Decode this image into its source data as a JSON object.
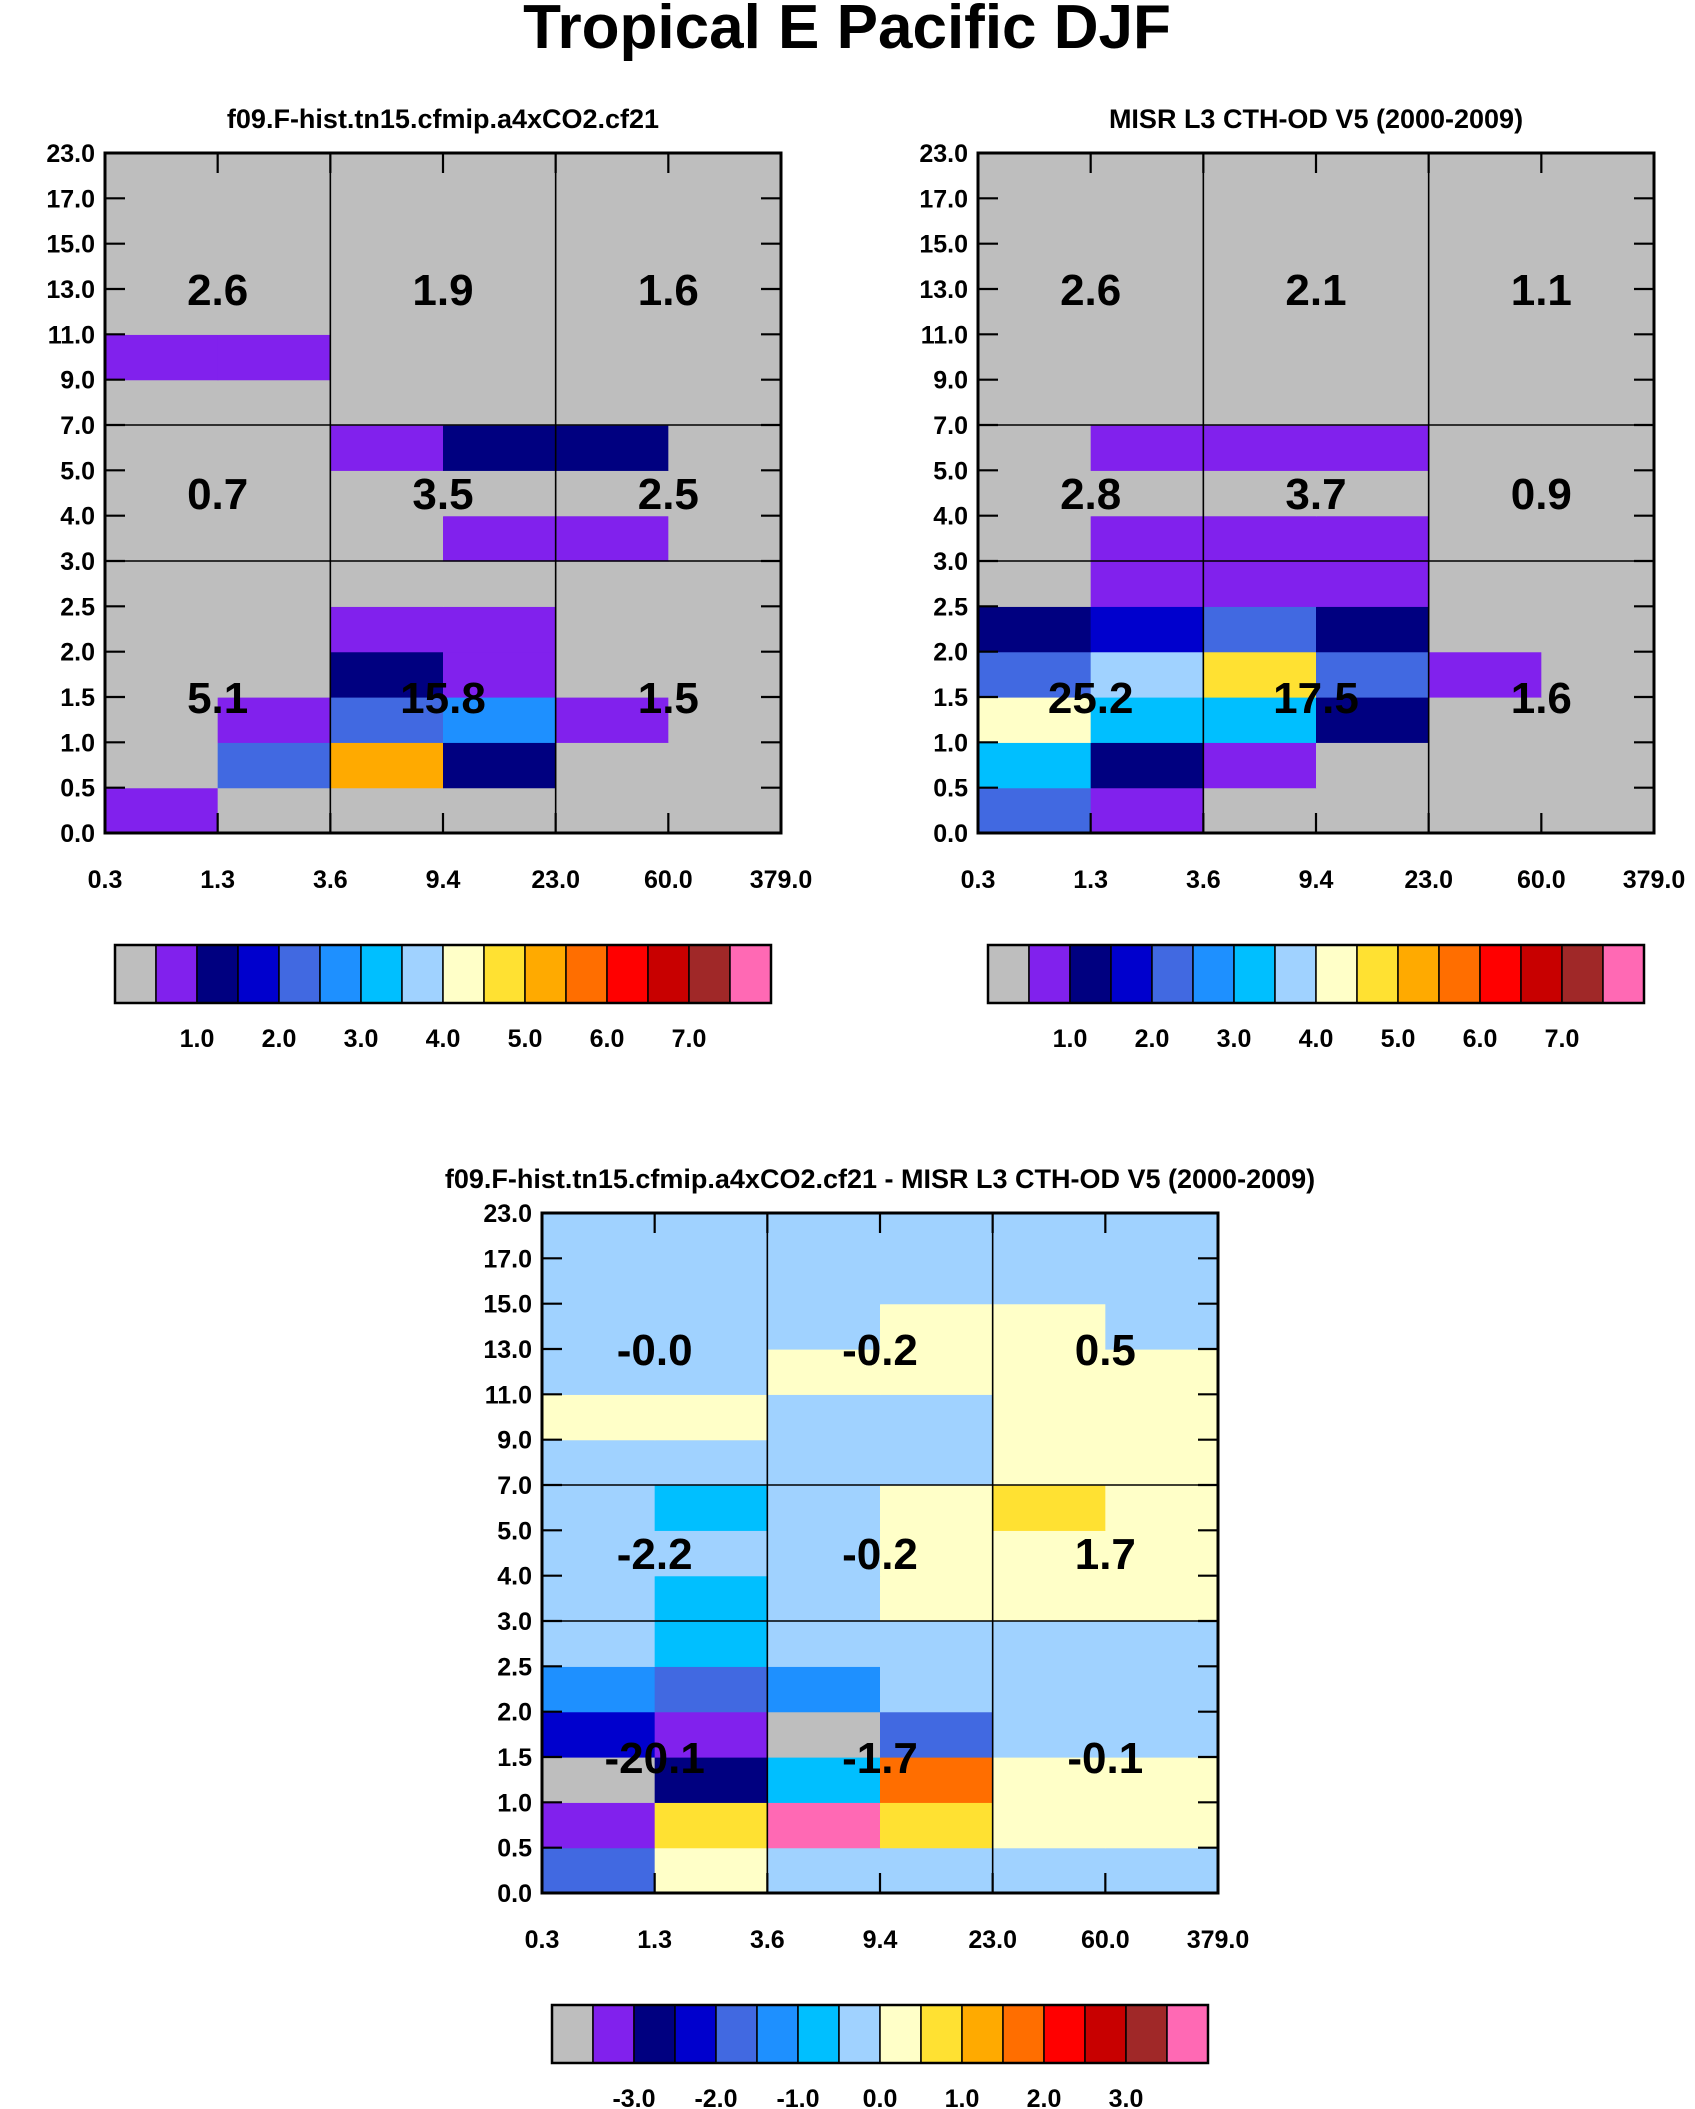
{
  "figure_title": "Tropical E Pacific DJF",
  "palette": {
    "gray": "#bebebe",
    "purple": "#8121ed",
    "navy": "#000080",
    "mblue": "#0000cd",
    "royal": "#4169e1",
    "dodger": "#1e90ff",
    "sky": "#00bfff",
    "lblue": "#a0d2ff",
    "cream": "#ffffc8",
    "yellow": "#ffe132",
    "orange": "#ffaa00",
    "dorange": "#ff6e00",
    "red": "#ff0000",
    "crimson": "#c80000",
    "brown": "#a02828",
    "pink": "#ff69b4"
  },
  "chart_data": [
    {
      "type": "heatmap",
      "name": "model",
      "title": "f09.F-hist.tn15.cfmip.a4xCO2.cf21",
      "x_ticks": [
        "0.3",
        "1.3",
        "3.6",
        "9.4",
        "23.0",
        "60.0",
        "379.0"
      ],
      "y_ticks": [
        "0.0",
        "0.5",
        "1.0",
        "1.5",
        "2.0",
        "2.5",
        "3.0",
        "4.0",
        "5.0",
        "7.0",
        "9.0",
        "11.0",
        "13.0",
        "15.0",
        "17.0",
        "23.0"
      ],
      "grid": {
        "x_index": [
          2,
          4
        ],
        "y_index": [
          6,
          9
        ]
      },
      "cells": [
        [
          "purple",
          "gray",
          "gray",
          "gray",
          "gray",
          "gray"
        ],
        [
          "gray",
          "royal",
          "orange",
          "navy",
          "gray",
          "gray"
        ],
        [
          "gray",
          "purple",
          "royal",
          "dodger",
          "purple",
          "gray"
        ],
        [
          "gray",
          "gray",
          "navy",
          "purple",
          "gray",
          "gray"
        ],
        [
          "gray",
          "gray",
          "purple",
          "purple",
          "gray",
          "gray"
        ],
        [
          "gray",
          "gray",
          "gray",
          "gray",
          "gray",
          "gray"
        ],
        [
          "gray",
          "gray",
          "gray",
          "purple",
          "purple",
          "gray"
        ],
        [
          "gray",
          "gray",
          "gray",
          "gray",
          "gray",
          "gray"
        ],
        [
          "gray",
          "gray",
          "purple",
          "navy",
          "navy",
          "gray"
        ],
        [
          "gray",
          "gray",
          "gray",
          "gray",
          "gray",
          "gray"
        ],
        [
          "purple",
          "purple",
          "gray",
          "gray",
          "gray",
          "gray"
        ],
        [
          "gray",
          "gray",
          "gray",
          "gray",
          "gray",
          "gray"
        ],
        [
          "gray",
          "gray",
          "gray",
          "gray",
          "gray",
          "gray"
        ],
        [
          "gray",
          "gray",
          "gray",
          "gray",
          "gray",
          "gray"
        ],
        [
          "gray",
          "gray",
          "gray",
          "gray",
          "gray",
          "gray"
        ]
      ],
      "box_values": [
        [
          "5.1",
          "15.8",
          "1.5"
        ],
        [
          "0.7",
          "3.5",
          "2.5"
        ],
        [
          "2.6",
          "1.9",
          "1.6"
        ]
      ],
      "colorbar": {
        "colors": [
          "gray",
          "purple",
          "navy",
          "mblue",
          "royal",
          "dodger",
          "sky",
          "lblue",
          "cream",
          "yellow",
          "orange",
          "dorange",
          "red",
          "crimson",
          "brown",
          "pink"
        ],
        "labels": [
          "1.0",
          "2.0",
          "3.0",
          "4.0",
          "5.0",
          "6.0",
          "7.0"
        ],
        "label_boundary_index": [
          2,
          4,
          6,
          8,
          10,
          12,
          14
        ]
      }
    },
    {
      "type": "heatmap",
      "name": "obs",
      "title": "MISR L3 CTH-OD V5 (2000-2009)",
      "x_ticks": [
        "0.3",
        "1.3",
        "3.6",
        "9.4",
        "23.0",
        "60.0",
        "379.0"
      ],
      "y_ticks": [
        "0.0",
        "0.5",
        "1.0",
        "1.5",
        "2.0",
        "2.5",
        "3.0",
        "4.0",
        "5.0",
        "7.0",
        "9.0",
        "11.0",
        "13.0",
        "15.0",
        "17.0",
        "23.0"
      ],
      "grid": {
        "x_index": [
          2,
          4
        ],
        "y_index": [
          6,
          9
        ]
      },
      "cells": [
        [
          "royal",
          "purple",
          "gray",
          "gray",
          "gray",
          "gray"
        ],
        [
          "sky",
          "navy",
          "purple",
          "gray",
          "gray",
          "gray"
        ],
        [
          "cream",
          "sky",
          "sky",
          "navy",
          "gray",
          "gray"
        ],
        [
          "royal",
          "lblue",
          "yellow",
          "royal",
          "purple",
          "gray"
        ],
        [
          "navy",
          "mblue",
          "royal",
          "navy",
          "gray",
          "gray"
        ],
        [
          "gray",
          "purple",
          "purple",
          "purple",
          "gray",
          "gray"
        ],
        [
          "gray",
          "purple",
          "purple",
          "purple",
          "gray",
          "gray"
        ],
        [
          "gray",
          "gray",
          "gray",
          "gray",
          "gray",
          "gray"
        ],
        [
          "gray",
          "purple",
          "purple",
          "purple",
          "gray",
          "gray"
        ],
        [
          "gray",
          "gray",
          "gray",
          "gray",
          "gray",
          "gray"
        ],
        [
          "gray",
          "gray",
          "gray",
          "gray",
          "gray",
          "gray"
        ],
        [
          "gray",
          "gray",
          "gray",
          "gray",
          "gray",
          "gray"
        ],
        [
          "gray",
          "gray",
          "gray",
          "gray",
          "gray",
          "gray"
        ],
        [
          "gray",
          "gray",
          "gray",
          "gray",
          "gray",
          "gray"
        ],
        [
          "gray",
          "gray",
          "gray",
          "gray",
          "gray",
          "gray"
        ]
      ],
      "box_values": [
        [
          "25.2",
          "17.5",
          "1.6"
        ],
        [
          "2.8",
          "3.7",
          "0.9"
        ],
        [
          "2.6",
          "2.1",
          "1.1"
        ]
      ],
      "colorbar": {
        "colors": [
          "gray",
          "purple",
          "navy",
          "mblue",
          "royal",
          "dodger",
          "sky",
          "lblue",
          "cream",
          "yellow",
          "orange",
          "dorange",
          "red",
          "crimson",
          "brown",
          "pink"
        ],
        "labels": [
          "1.0",
          "2.0",
          "3.0",
          "4.0",
          "5.0",
          "6.0",
          "7.0"
        ],
        "label_boundary_index": [
          2,
          4,
          6,
          8,
          10,
          12,
          14
        ]
      }
    },
    {
      "type": "heatmap",
      "name": "diff",
      "title": "f09.F-hist.tn15.cfmip.a4xCO2.cf21 - MISR L3 CTH-OD V5 (2000-2009)",
      "x_ticks": [
        "0.3",
        "1.3",
        "3.6",
        "9.4",
        "23.0",
        "60.0",
        "379.0"
      ],
      "y_ticks": [
        "0.0",
        "0.5",
        "1.0",
        "1.5",
        "2.0",
        "2.5",
        "3.0",
        "4.0",
        "5.0",
        "7.0",
        "9.0",
        "11.0",
        "13.0",
        "15.0",
        "17.0",
        "23.0"
      ],
      "grid": {
        "x_index": [
          2,
          4
        ],
        "y_index": [
          6,
          9
        ]
      },
      "cells": [
        [
          "royal",
          "cream",
          "lblue",
          "lblue",
          "lblue",
          "lblue"
        ],
        [
          "purple",
          "yellow",
          "pink",
          "yellow",
          "cream",
          "cream"
        ],
        [
          "gray",
          "navy",
          "sky",
          "dorange",
          "cream",
          "cream"
        ],
        [
          "mblue",
          "purple",
          "gray",
          "royal",
          "lblue",
          "lblue"
        ],
        [
          "dodger",
          "royal",
          "dodger",
          "lblue",
          "lblue",
          "lblue"
        ],
        [
          "lblue",
          "sky",
          "lblue",
          "lblue",
          "lblue",
          "lblue"
        ],
        [
          "lblue",
          "sky",
          "lblue",
          "cream",
          "cream",
          "cream"
        ],
        [
          "lblue",
          "lblue",
          "lblue",
          "cream",
          "cream",
          "cream"
        ],
        [
          "lblue",
          "sky",
          "lblue",
          "cream",
          "yellow",
          "cream"
        ],
        [
          "lblue",
          "lblue",
          "lblue",
          "lblue",
          "cream",
          "cream"
        ],
        [
          "cream",
          "cream",
          "lblue",
          "lblue",
          "cream",
          "cream"
        ],
        [
          "lblue",
          "lblue",
          "cream",
          "cream",
          "cream",
          "cream"
        ],
        [
          "lblue",
          "lblue",
          "lblue",
          "cream",
          "cream",
          "lblue"
        ],
        [
          "lblue",
          "lblue",
          "lblue",
          "lblue",
          "lblue",
          "lblue"
        ],
        [
          "lblue",
          "lblue",
          "lblue",
          "lblue",
          "lblue",
          "lblue"
        ]
      ],
      "box_values": [
        [
          "-20.1",
          "-1.7",
          "-0.1"
        ],
        [
          "-2.2",
          "-0.2",
          "1.7"
        ],
        [
          "-0.0",
          "-0.2",
          "0.5"
        ]
      ],
      "colorbar": {
        "colors": [
          "gray",
          "purple",
          "navy",
          "mblue",
          "royal",
          "dodger",
          "sky",
          "lblue",
          "cream",
          "yellow",
          "orange",
          "dorange",
          "red",
          "crimson",
          "brown",
          "pink"
        ],
        "labels": [
          "-3.0",
          "-2.0",
          "-1.0",
          "0.0",
          "1.0",
          "2.0",
          "3.0"
        ],
        "label_boundary_index": [
          2,
          4,
          6,
          8,
          10,
          12,
          14
        ]
      }
    }
  ]
}
